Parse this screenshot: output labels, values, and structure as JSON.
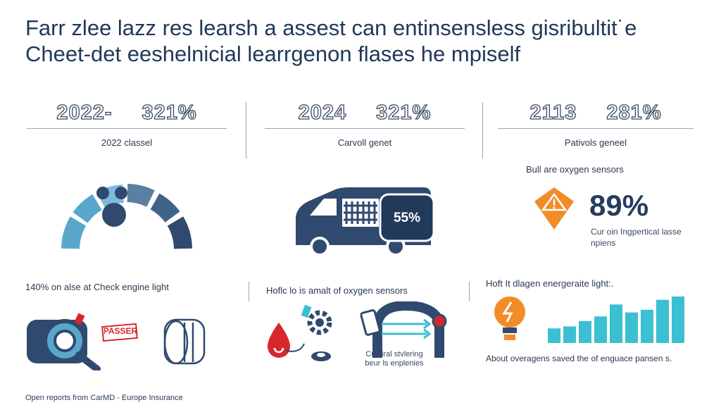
{
  "title": {
    "line1": "Farr zlee lazz res learsh a assest can entinsensless gisribultit˙e",
    "line2": "Cheet-det eeshelnicial learrgenon flases he mpiself"
  },
  "columns": [
    {
      "stat_left": "2022-",
      "stat_right": "321%",
      "subtitle": "2022 classel"
    },
    {
      "stat_left": "2024",
      "stat_right": "321%",
      "subtitle": "Carvoll genet",
      "badge": "55%"
    },
    {
      "stat_left": "2113",
      "stat_right": "281%",
      "subtitle": "Pativols geneel",
      "label": "Bull are oxygen sensors",
      "big_value": "89%",
      "note": "Cur oin Ingpertical lasse npiens"
    }
  ],
  "bottom": [
    {
      "label": "140% on alse at Check engine light",
      "stamp": "PASSER"
    },
    {
      "label": "Hoflc lo is amalt of oxygen sensors",
      "note": "Cuipiral stvlering beur ls enplenies"
    },
    {
      "label": "Hoft It dlagen energeraite light:.",
      "note": "About overagens saved the of enguace pansen s.",
      "bars": [
        22,
        25,
        33,
        40,
        58,
        46,
        50,
        65,
        70
      ]
    }
  ],
  "footer": "Open reports from CarMD - Europe Insurance",
  "colors": {
    "navy": "#2f4a6e",
    "light_blue": "#5aa7cc",
    "orange": "#f28c28",
    "teal": "#3bbfd3",
    "red": "#d9262c"
  }
}
